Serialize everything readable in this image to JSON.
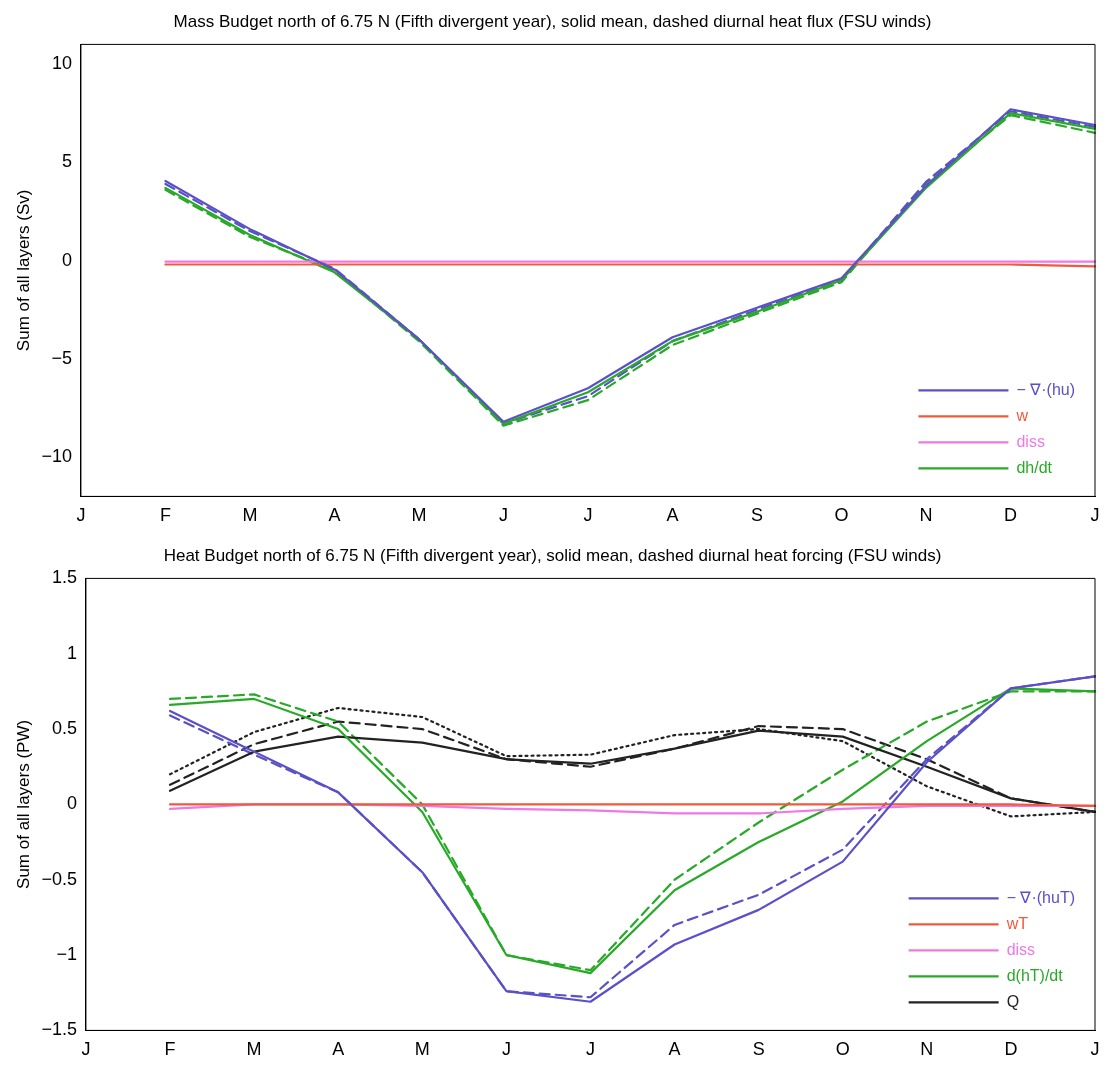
{
  "chart_data": [
    {
      "type": "line",
      "title": "Mass Budget north of 6.75 N (Fifth divergent year), solid mean, dashed diurnal heat flux (FSU winds)",
      "ylabel": "Sum of all layers (Sv)",
      "categories": [
        "J",
        "F",
        "M",
        "A",
        "M",
        "J",
        "J",
        "A",
        "S",
        "O",
        "N",
        "D",
        "J"
      ],
      "ylim": [
        -12,
        11
      ],
      "yticks": [
        -10,
        -5,
        0,
        5,
        10
      ],
      "grid": false,
      "legend": "bottom right",
      "marker": "none",
      "series": [
        {
          "name": "− ∇·(hu)",
          "color": "#5a50c8",
          "line_style": "solid",
          "values": [
            null,
            4.05,
            1.6,
            -0.45,
            -4.0,
            -8.2,
            -6.5,
            -3.9,
            -2.4,
            -0.9,
            3.8,
            7.7,
            6.9
          ]
        },
        {
          "name": "w",
          "color": "#f05a3c",
          "line_style": "solid",
          "values": [
            null,
            -0.2,
            -0.2,
            -0.2,
            -0.2,
            -0.2,
            -0.2,
            -0.2,
            -0.2,
            -0.2,
            -0.2,
            -0.2,
            -0.3
          ]
        },
        {
          "name": "diss",
          "color": "#f078e6",
          "line_style": "solid",
          "values": [
            null,
            -0.05,
            -0.05,
            -0.05,
            -0.05,
            -0.05,
            -0.05,
            -0.05,
            -0.05,
            -0.05,
            -0.05,
            -0.05,
            -0.05
          ]
        },
        {
          "name": "dh/dt",
          "color": "#28aa28",
          "line_style": "solid",
          "values": [
            null,
            3.7,
            1.3,
            -0.6,
            -4.0,
            -8.3,
            -6.7,
            -4.1,
            -2.6,
            -1.0,
            3.7,
            7.5,
            6.7
          ]
        },
        {
          "color": "#5a50c8",
          "line_style": "dashed",
          "values": [
            null,
            3.9,
            1.5,
            -0.4,
            -4.0,
            -8.3,
            -6.9,
            -4.1,
            -2.5,
            -1.0,
            4.0,
            7.6,
            6.8
          ]
        },
        {
          "color": "#28aa28",
          "line_style": "dashed",
          "values": [
            null,
            3.6,
            1.2,
            -0.5,
            -4.1,
            -8.4,
            -7.1,
            -4.3,
            -2.7,
            -1.1,
            3.9,
            7.4,
            6.5
          ]
        }
      ]
    },
    {
      "type": "line",
      "title": "Heat Budget north of 6.75 N (Fifth divergent year), solid mean, dashed diurnal heat forcing (FSU winds)",
      "ylabel": "Sum of all layers (PW)",
      "categories": [
        "J",
        "F",
        "M",
        "A",
        "M",
        "J",
        "J",
        "A",
        "S",
        "O",
        "N",
        "D",
        "J"
      ],
      "ylim": [
        -1.5,
        1.5
      ],
      "yticks": [
        -1.5,
        -1,
        -0.5,
        0,
        0.5,
        1,
        1.5
      ],
      "grid": false,
      "legend": "bottom right",
      "marker": "none",
      "series": [
        {
          "name": "− ∇·(huT)",
          "color": "#5a50c8",
          "line_style": "solid",
          "values": [
            null,
            0.62,
            0.35,
            0.08,
            -0.45,
            -1.24,
            -1.31,
            -0.93,
            -0.7,
            -0.38,
            0.28,
            0.77,
            0.85
          ]
        },
        {
          "name": "wT",
          "color": "#f05a3c",
          "line_style": "solid",
          "values": [
            null,
            0,
            0,
            0,
            0,
            0,
            0,
            0,
            0,
            0,
            0,
            0,
            -0.01
          ]
        },
        {
          "name": "diss",
          "color": "#f078e6",
          "line_style": "solid",
          "values": [
            null,
            -0.03,
            0,
            0,
            -0.01,
            -0.03,
            -0.04,
            -0.06,
            -0.06,
            -0.03,
            -0.01,
            -0.01,
            -0.01
          ]
        },
        {
          "name": "d(hT)/dt",
          "color": "#28aa28",
          "line_style": "solid",
          "values": [
            null,
            0.66,
            0.7,
            0.5,
            -0.05,
            -1.0,
            -1.12,
            -0.57,
            -0.25,
            0.02,
            0.42,
            0.77,
            0.75
          ]
        },
        {
          "name": "Q",
          "color": "#222222",
          "line_style": "solid",
          "values": [
            null,
            0.09,
            0.35,
            0.45,
            0.41,
            0.3,
            0.27,
            0.37,
            0.49,
            0.45,
            0.25,
            0.04,
            -0.05
          ]
        },
        {
          "color": "#5a50c8",
          "line_style": "dashed",
          "values": [
            null,
            0.59,
            0.33,
            0.08,
            -0.45,
            -1.24,
            -1.28,
            -0.8,
            -0.6,
            -0.3,
            0.3,
            0.77,
            0.85
          ]
        },
        {
          "color": "#28aa28",
          "line_style": "dashed",
          "values": [
            null,
            0.7,
            0.73,
            0.55,
            0.0,
            -1.0,
            -1.1,
            -0.5,
            -0.12,
            0.23,
            0.55,
            0.75,
            0.75
          ]
        },
        {
          "color": "#222222",
          "line_style": "dashed",
          "values": [
            null,
            0.13,
            0.4,
            0.55,
            0.5,
            0.3,
            0.25,
            0.37,
            0.52,
            0.5,
            0.3,
            0.04,
            -0.05
          ]
        },
        {
          "color": "#222222",
          "line_style": "dotted",
          "values": [
            null,
            0.2,
            0.48,
            0.64,
            0.58,
            0.32,
            0.33,
            0.46,
            0.5,
            0.42,
            0.12,
            -0.08,
            -0.05
          ]
        }
      ]
    }
  ]
}
